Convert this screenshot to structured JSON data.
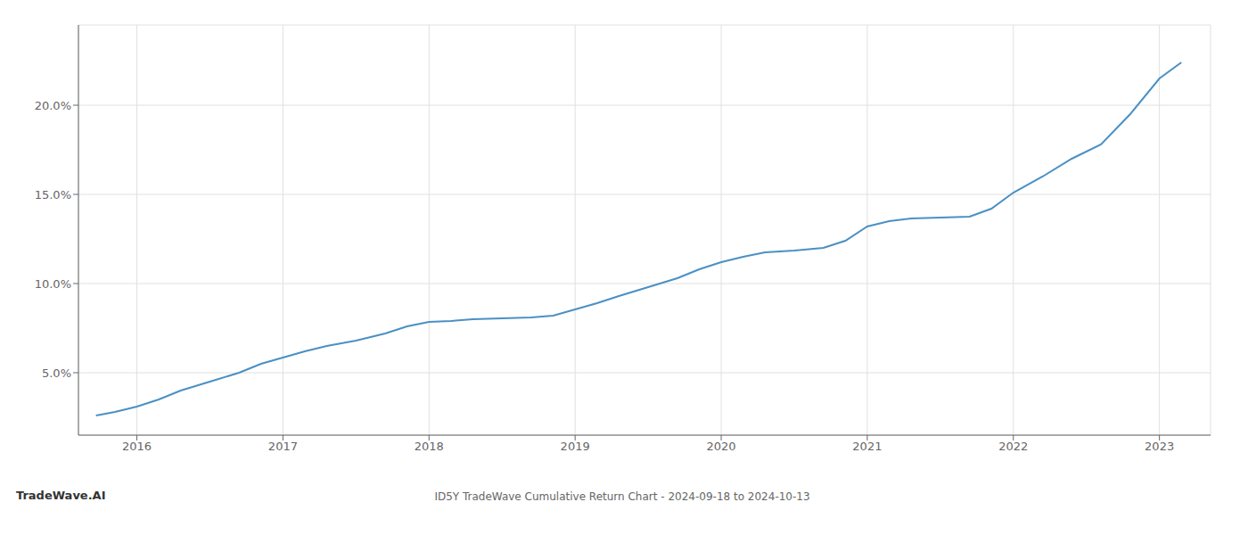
{
  "chart_data": {
    "type": "line",
    "title": "ID5Y TradeWave Cumulative Return Chart - 2024-09-18 to 2024-10-13",
    "annotations": [
      "TradeWave.AI"
    ],
    "x": [
      2015.72,
      2015.85,
      2016.0,
      2016.15,
      2016.3,
      2016.5,
      2016.7,
      2016.85,
      2017.0,
      2017.15,
      2017.3,
      2017.5,
      2017.7,
      2017.85,
      2018.0,
      2018.15,
      2018.3,
      2018.5,
      2018.7,
      2018.85,
      2019.0,
      2019.15,
      2019.3,
      2019.5,
      2019.7,
      2019.85,
      2020.0,
      2020.15,
      2020.3,
      2020.5,
      2020.7,
      2020.85,
      2021.0,
      2021.15,
      2021.3,
      2021.5,
      2021.7,
      2021.85,
      2022.0,
      2022.2,
      2022.4,
      2022.6,
      2022.8,
      2023.0,
      2023.15
    ],
    "values": [
      2.6,
      2.8,
      3.1,
      3.5,
      4.0,
      4.5,
      5.0,
      5.5,
      5.85,
      6.2,
      6.5,
      6.8,
      7.2,
      7.6,
      7.85,
      7.9,
      8.0,
      8.05,
      8.1,
      8.2,
      8.55,
      8.9,
      9.3,
      9.8,
      10.3,
      10.8,
      11.2,
      11.5,
      11.75,
      11.85,
      12.0,
      12.4,
      13.2,
      13.5,
      13.65,
      13.7,
      13.75,
      14.2,
      15.1,
      16.0,
      17.0,
      17.8,
      19.5,
      21.5,
      22.4
    ],
    "color": "#4a90c4",
    "xlim": [
      2015.6,
      2023.35
    ],
    "ylim": [
      1.5,
      24.5
    ],
    "xticks": [
      2016,
      2017,
      2018,
      2019,
      2020,
      2021,
      2022,
      2023
    ],
    "yticks": [
      {
        "value": 5.0,
        "label": "5.0%"
      },
      {
        "value": 10.0,
        "label": "10.0%"
      },
      {
        "value": 15.0,
        "label": "15.0%"
      },
      {
        "value": 20.0,
        "label": "20.0%"
      }
    ],
    "grid": true
  }
}
